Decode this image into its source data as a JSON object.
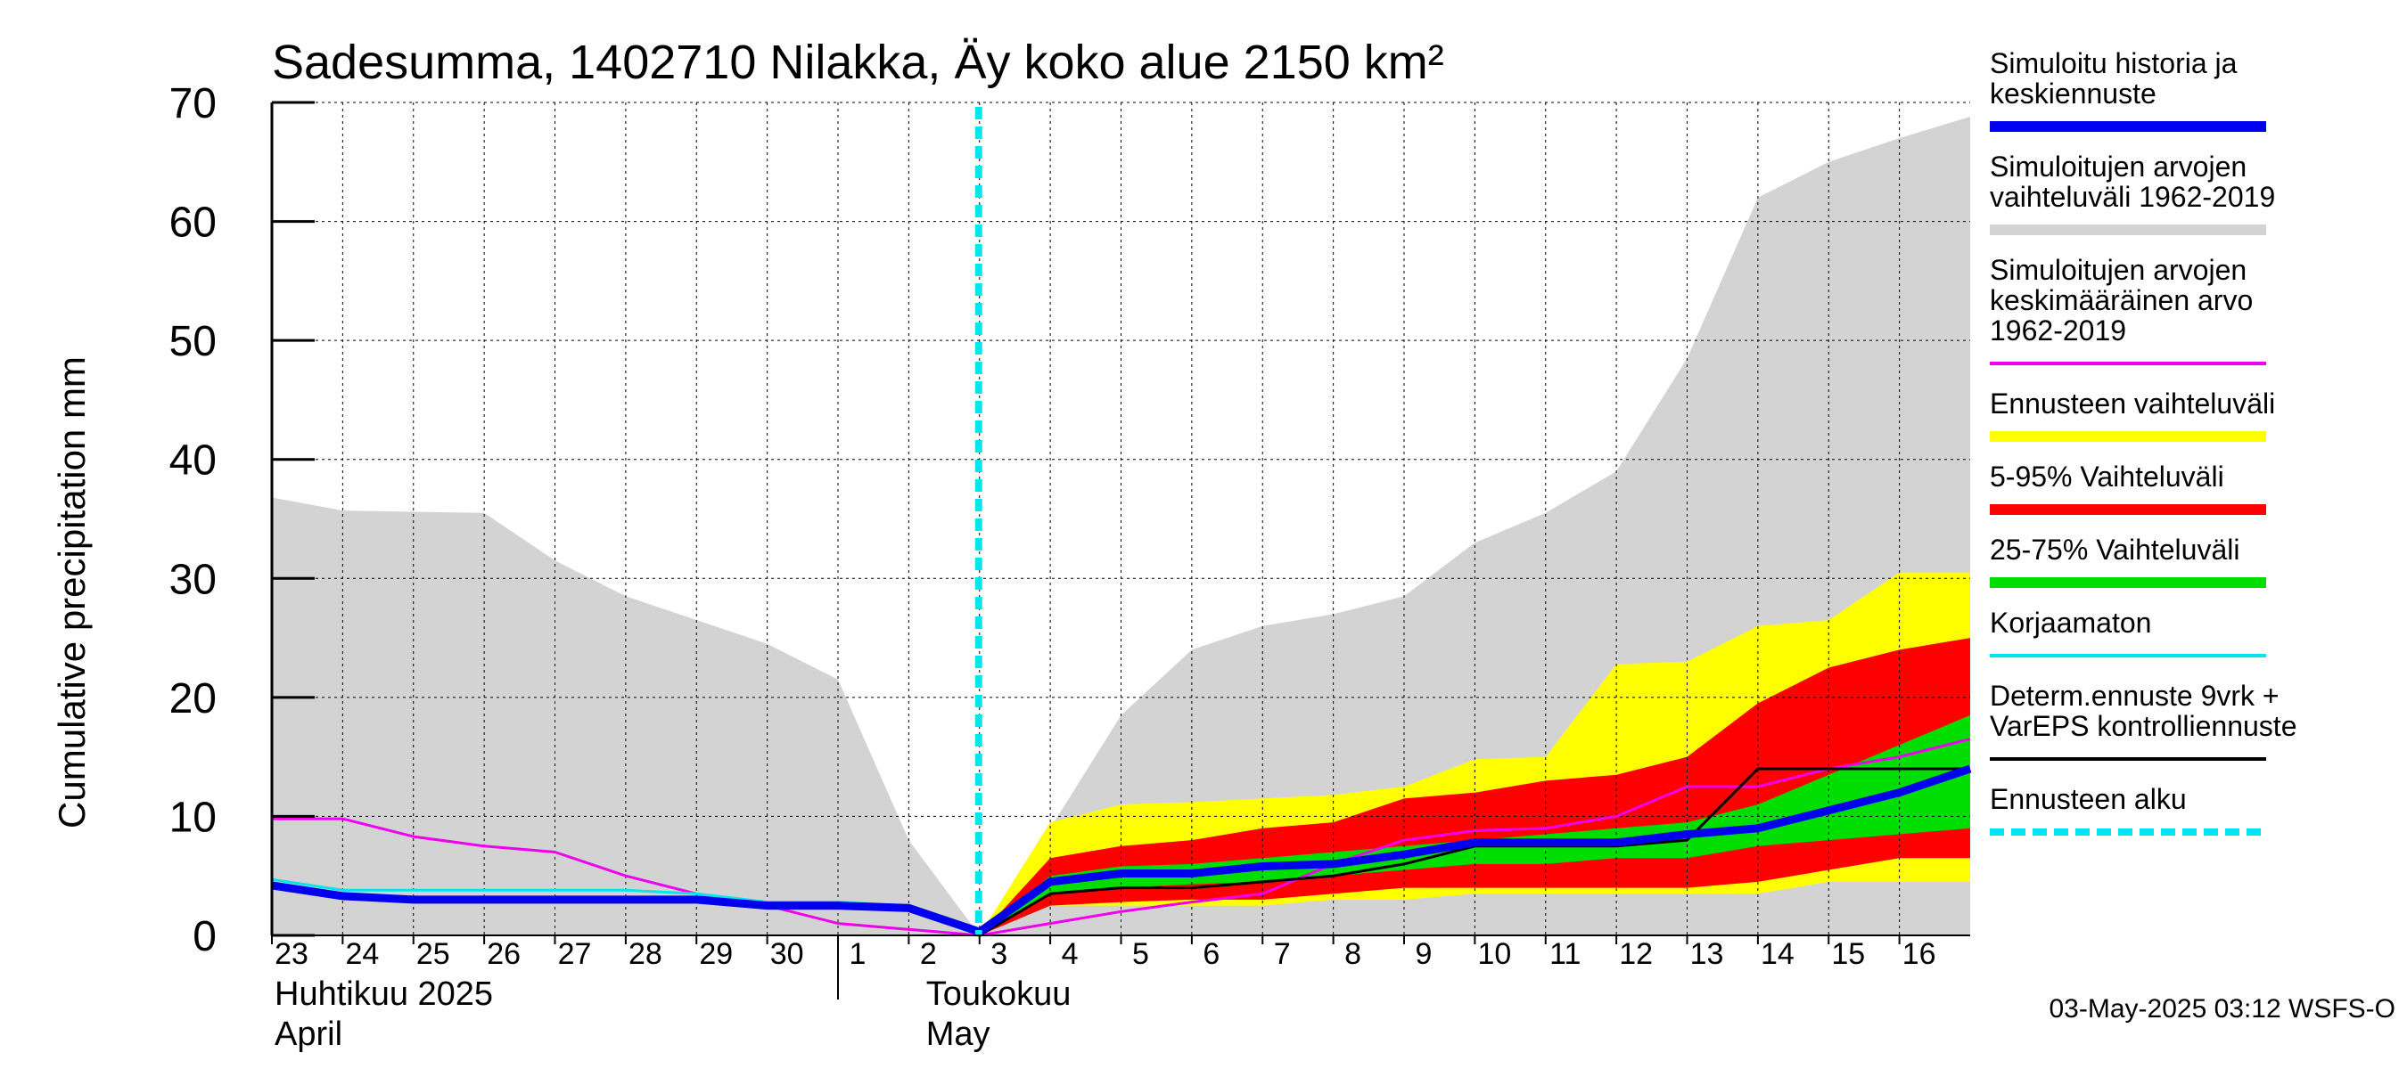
{
  "chart_data": {
    "type": "area",
    "title": "Sadesumma, 1402710 Nilakka, Äy koko alue 2150 km²",
    "ylabel": "Cumulative precipitation   mm",
    "ylim": [
      0,
      70
    ],
    "yticks": [
      0,
      10,
      20,
      30,
      40,
      50,
      60,
      70
    ],
    "x_start_day": 23,
    "x_end_day": 47,
    "forecast_start_day": 33,
    "x_tick_labels": [
      {
        "day": 23,
        "label": "23"
      },
      {
        "day": 24,
        "label": "24"
      },
      {
        "day": 25,
        "label": "25"
      },
      {
        "day": 26,
        "label": "26"
      },
      {
        "day": 27,
        "label": "27"
      },
      {
        "day": 28,
        "label": "28"
      },
      {
        "day": 29,
        "label": "29"
      },
      {
        "day": 30,
        "label": "30"
      },
      {
        "day": 31,
        "label": "1"
      },
      {
        "day": 32,
        "label": "2"
      },
      {
        "day": 33,
        "label": "3"
      },
      {
        "day": 34,
        "label": "4"
      },
      {
        "day": 35,
        "label": "5"
      },
      {
        "day": 36,
        "label": "6"
      },
      {
        "day": 37,
        "label": "7"
      },
      {
        "day": 38,
        "label": "8"
      },
      {
        "day": 39,
        "label": "9"
      },
      {
        "day": 40,
        "label": "10"
      },
      {
        "day": 41,
        "label": "11"
      },
      {
        "day": 42,
        "label": "12"
      },
      {
        "day": 43,
        "label": "13"
      },
      {
        "day": 44,
        "label": "14"
      },
      {
        "day": 45,
        "label": "15"
      },
      {
        "day": 46,
        "label": "16"
      }
    ],
    "month_labels": {
      "april_fi": "Huhtikuu  2025",
      "april_en": "April",
      "may_fi": "Toukokuu",
      "may_en": "May"
    },
    "series": [
      {
        "name": "Simuloitujen arvojen vaihteluväli 1962-2019",
        "kind": "band",
        "color": "#d3d3d3",
        "x": [
          23,
          24,
          25,
          26,
          27,
          28,
          29,
          30,
          31,
          32,
          33,
          34,
          35,
          36,
          37,
          38,
          39,
          40,
          41,
          42,
          43,
          44,
          45,
          46,
          47
        ],
        "upper": [
          36.8,
          35.7,
          35.6,
          35.5,
          31.5,
          28.5,
          26.5,
          24.5,
          21.5,
          8.0,
          0,
          9.0,
          18.5,
          24.0,
          26.0,
          27.0,
          28.5,
          33.0,
          35.5,
          39.0,
          48.5,
          62.0,
          65.0,
          67.0,
          68.8
        ],
        "lower": [
          0,
          0,
          0,
          0,
          0,
          0,
          0,
          0,
          0,
          0,
          0,
          0,
          0,
          0,
          0,
          0,
          0,
          0,
          0,
          0,
          0,
          0,
          0,
          0,
          0
        ]
      },
      {
        "name": "Ennusteen vaihteluväli",
        "kind": "band",
        "color": "#ffff00",
        "x": [
          33,
          34,
          35,
          36,
          37,
          38,
          39,
          40,
          41,
          42,
          43,
          44,
          45,
          46,
          47
        ],
        "upper": [
          0,
          9.5,
          11.0,
          11.2,
          11.5,
          11.8,
          12.5,
          14.8,
          15.0,
          22.8,
          23.0,
          26.0,
          26.5,
          30.5,
          30.5
        ],
        "lower": [
          0,
          2.5,
          2.5,
          2.5,
          2.5,
          3.0,
          3.0,
          3.5,
          3.5,
          3.5,
          3.5,
          3.5,
          4.5,
          4.5,
          4.5
        ]
      },
      {
        "name": "5-95% Vaihteluväli",
        "kind": "band",
        "color": "#ff0000",
        "x": [
          33,
          34,
          35,
          36,
          37,
          38,
          39,
          40,
          41,
          42,
          43,
          44,
          45,
          46,
          47
        ],
        "upper": [
          0,
          6.5,
          7.5,
          8.0,
          9.0,
          9.5,
          11.5,
          12.0,
          13.0,
          13.5,
          15.0,
          19.5,
          22.5,
          24.0,
          25.0
        ],
        "lower": [
          0,
          2.5,
          2.8,
          3.0,
          3.0,
          3.5,
          4.0,
          4.0,
          4.0,
          4.0,
          4.0,
          4.5,
          5.5,
          6.5,
          6.5
        ]
      },
      {
        "name": "25-75% Vaihteluväli",
        "kind": "band",
        "color": "#00dd00",
        "x": [
          33,
          34,
          35,
          36,
          37,
          38,
          39,
          40,
          41,
          42,
          43,
          44,
          45,
          46,
          47
        ],
        "upper": [
          0,
          5.0,
          5.8,
          6.0,
          6.5,
          7.0,
          7.5,
          8.0,
          8.5,
          9.0,
          9.5,
          11.0,
          13.5,
          16.0,
          18.5
        ],
        "lower": [
          0,
          3.5,
          4.0,
          4.3,
          4.5,
          5.0,
          5.5,
          6.0,
          6.0,
          6.5,
          6.5,
          7.5,
          8.0,
          8.5,
          9.0
        ]
      },
      {
        "name": "Simuloitujen arvojen keskimääräinen arvo 1962-2019",
        "kind": "line",
        "color": "#ee00ee",
        "width": 3,
        "x": [
          23,
          24,
          25,
          26,
          27,
          28,
          29,
          30,
          31,
          32,
          33,
          34,
          35,
          36,
          37,
          38,
          39,
          40,
          41,
          42,
          43,
          44,
          45,
          46,
          47
        ],
        "values": [
          9.8,
          9.8,
          8.3,
          7.5,
          7.0,
          5.0,
          3.5,
          2.5,
          1.0,
          0.5,
          0,
          1.0,
          2.0,
          2.8,
          3.5,
          6.0,
          8.0,
          8.8,
          9.0,
          10.0,
          12.5,
          12.5,
          14.0,
          15.0,
          16.5
        ]
      },
      {
        "name": "Korjaamaton",
        "kind": "line",
        "color": "#00e5ee",
        "width": 3,
        "x": [
          23,
          24,
          25,
          26,
          27,
          28,
          29,
          30,
          31,
          32,
          33
        ],
        "values": [
          4.7,
          3.8,
          3.8,
          3.8,
          3.8,
          3.8,
          3.5,
          2.8,
          2.8,
          2.5,
          0.3
        ]
      },
      {
        "name": "Determ.ennuste 9vrk + VarEPS kontrolliennuste",
        "kind": "line",
        "color": "#000000",
        "width": 3,
        "x": [
          33,
          34,
          35,
          36,
          37,
          38,
          39,
          40,
          41,
          42,
          43,
          44,
          45,
          46,
          47
        ],
        "values": [
          0,
          3.5,
          4.0,
          4.0,
          4.5,
          5.0,
          6.0,
          7.5,
          7.5,
          7.5,
          8.0,
          14.0,
          14.0,
          14.0,
          14.0
        ]
      },
      {
        "name": "Simuloitu historia ja keskiennuste",
        "kind": "line",
        "color": "#0000ee",
        "width": 9,
        "x": [
          23,
          24,
          25,
          26,
          27,
          28,
          29,
          30,
          31,
          32,
          33,
          34,
          35,
          36,
          37,
          38,
          39,
          40,
          41,
          42,
          43,
          44,
          45,
          46,
          47
        ],
        "values": [
          4.2,
          3.3,
          3.0,
          3.0,
          3.0,
          3.0,
          3.0,
          2.5,
          2.5,
          2.3,
          0.3,
          4.5,
          5.2,
          5.2,
          5.8,
          6.0,
          6.8,
          7.8,
          7.8,
          7.8,
          8.5,
          9.0,
          10.5,
          12.0,
          14.0
        ]
      }
    ],
    "legend": [
      {
        "label_lines": [
          "Simuloitu historia ja",
          "keskiennuste"
        ],
        "color": "#0000ee",
        "style": "thick"
      },
      {
        "label_lines": [
          "Simuloitujen arvojen",
          "vaihteluväli 1962-2019"
        ],
        "color": "#d3d3d3",
        "style": "thick"
      },
      {
        "label_lines": [
          "Simuloitujen arvojen",
          "keskimääräinen arvo",
          "   1962-2019"
        ],
        "color": "#ee00ee",
        "style": "thin"
      },
      {
        "label_lines": [
          "Ennusteen vaihteluväli"
        ],
        "color": "#ffff00",
        "style": "thick"
      },
      {
        "label_lines": [
          "5-95% Vaihteluväli"
        ],
        "color": "#ff0000",
        "style": "thick"
      },
      {
        "label_lines": [
          "25-75% Vaihteluväli"
        ],
        "color": "#00dd00",
        "style": "thick"
      },
      {
        "label_lines": [
          "Korjaamaton"
        ],
        "color": "#00e5ee",
        "style": "thin"
      },
      {
        "label_lines": [
          "Determ.ennuste 9vrk +",
          "VarEPS kontrolliennuste"
        ],
        "color": "#000000",
        "style": "thin"
      },
      {
        "label_lines": [
          "Ennusteen alku"
        ],
        "color": "#00e5ee",
        "style": "dashed"
      }
    ],
    "footer": "03-May-2025 03:12 WSFS-O"
  }
}
